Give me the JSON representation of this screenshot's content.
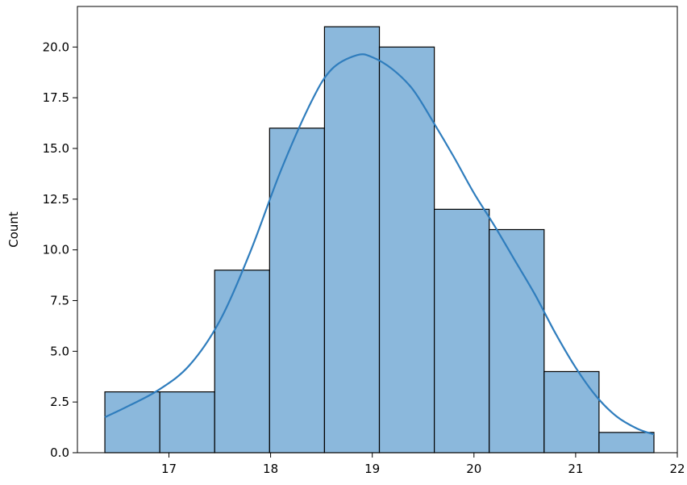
{
  "chart_data": {
    "type": "bar",
    "ylabel": "Count",
    "bins": [
      {
        "x0": 16.37,
        "x1": 16.91,
        "count": 3
      },
      {
        "x0": 16.91,
        "x1": 17.45,
        "count": 3
      },
      {
        "x0": 17.45,
        "x1": 17.99,
        "count": 9
      },
      {
        "x0": 17.99,
        "x1": 18.53,
        "count": 16
      },
      {
        "x0": 18.53,
        "x1": 19.07,
        "count": 21
      },
      {
        "x0": 19.07,
        "x1": 19.61,
        "count": 20
      },
      {
        "x0": 19.61,
        "x1": 20.15,
        "count": 12
      },
      {
        "x0": 20.15,
        "x1": 20.69,
        "count": 11
      },
      {
        "x0": 20.69,
        "x1": 21.23,
        "count": 4
      },
      {
        "x0": 21.23,
        "x1": 21.77,
        "count": 1
      }
    ],
    "kde": {
      "x": [
        16.37,
        16.6,
        16.9,
        17.2,
        17.5,
        17.8,
        18.1,
        18.4,
        18.6,
        18.85,
        19.0,
        19.2,
        19.4,
        19.6,
        19.8,
        20.0,
        20.2,
        20.4,
        20.6,
        20.8,
        21.0,
        21.2,
        21.4,
        21.6,
        21.77
      ],
      "y": [
        1.75,
        2.3,
        3.1,
        4.3,
        6.5,
        9.9,
        13.9,
        17.3,
        18.9,
        19.6,
        19.5,
        18.9,
        17.9,
        16.3,
        14.6,
        12.8,
        11.2,
        9.5,
        7.8,
        5.9,
        4.2,
        2.8,
        1.8,
        1.2,
        0.9
      ]
    },
    "xlim": [
      16.1,
      22.0
    ],
    "ylim": [
      0,
      22.0
    ],
    "xticks": [
      17,
      18,
      19,
      20,
      21,
      22
    ],
    "xtick_labels": [
      "17",
      "18",
      "19",
      "20",
      "21",
      "22"
    ],
    "yticks": [
      0,
      2.5,
      5,
      7.5,
      10,
      12.5,
      15,
      17.5,
      20
    ],
    "ytick_labels": [
      "0.0",
      "2.5",
      "5.0",
      "7.5",
      "10.0",
      "12.5",
      "15.0",
      "17.5",
      "20.0"
    ],
    "colors": {
      "bar_fill": "#8bb8dc",
      "bar_edge": "#000000",
      "kde_line": "#2f7dbd"
    },
    "grid": false
  }
}
